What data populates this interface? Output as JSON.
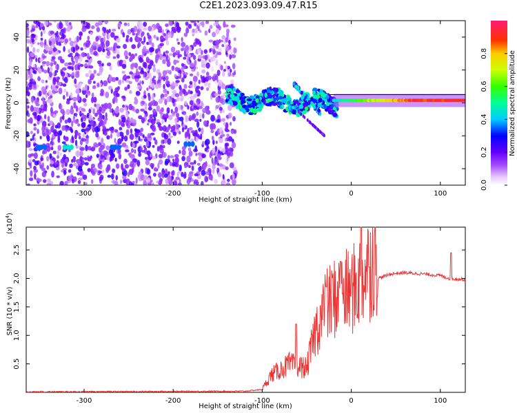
{
  "title": "C2E1.2023.093.09.47.R15",
  "colors": {
    "snr_line": "#ee3333",
    "background": "#ffffff",
    "axis": "#000000"
  },
  "chart_data": [
    {
      "type": "heatmap",
      "xlabel": "Height of straight line (km)",
      "ylabel": "Frequency (Hz)",
      "xlim": [
        -365,
        128
      ],
      "ylim": [
        -50,
        50
      ],
      "xticks": [
        -300,
        -200,
        -100,
        0,
        100
      ],
      "yticks": [
        -40,
        -20,
        0,
        20,
        40
      ],
      "colorbar": {
        "label": "Normalized spectral amplitude",
        "ticks": [
          0.0,
          0.2,
          0.4,
          0.6,
          0.8
        ],
        "range": [
          0,
          1
        ],
        "colormap": "rainbow (white-violet-blue-cyan-green-yellow-red-pink)"
      },
      "features": {
        "noise_region_x": [
          -365,
          -130
        ],
        "main_line_frequency": 1.5,
        "main_line_x": [
          -140,
          128
        ],
        "hot_spots": [
          {
            "x": -348,
            "y": -27,
            "amp": 0.35
          },
          {
            "x": -318,
            "y": -27,
            "amp": 0.45
          },
          {
            "x": -265,
            "y": -27,
            "amp": 0.35
          },
          {
            "x": -182,
            "y": -25,
            "amp": 0.35
          }
        ]
      }
    },
    {
      "type": "line",
      "xlabel": "Height of straight line (km)",
      "ylabel": "SNR (10 * v/v)",
      "yscale_label": "(x10",
      "yscale_exponent": "4",
      "xlim": [
        -365,
        128
      ],
      "ylim": [
        0,
        2.9
      ],
      "xticks": [
        -300,
        -200,
        -100,
        0,
        100
      ],
      "yticks": [
        0.5,
        1.0,
        1.5,
        2.0,
        2.5
      ],
      "series": [
        {
          "envelope_points": [
            {
              "x": -365,
              "y": 0.01
            },
            {
              "x": -120,
              "y": 0.02
            },
            {
              "x": -100,
              "y": 0.05
            },
            {
              "x": -90,
              "y": 0.25
            },
            {
              "x": -70,
              "y": 0.4
            },
            {
              "x": -50,
              "y": 0.35
            },
            {
              "x": -40,
              "y": 0.9
            },
            {
              "x": -30,
              "y": 1.2
            },
            {
              "x": -20,
              "y": 1.35
            },
            {
              "x": -10,
              "y": 1.4
            },
            {
              "x": 0,
              "y": 1.45
            },
            {
              "x": 10,
              "y": 1.6
            },
            {
              "x": 20,
              "y": 1.8
            },
            {
              "x": 30,
              "y": 2.0
            },
            {
              "x": 45,
              "y": 2.08
            },
            {
              "x": 60,
              "y": 2.1
            },
            {
              "x": 80,
              "y": 2.08
            },
            {
              "x": 100,
              "y": 2.05
            },
            {
              "x": 110,
              "y": 2.0
            },
            {
              "x": 128,
              "y": 1.98
            }
          ],
          "peaks": [
            {
              "x": -62,
              "y": 1.2
            },
            {
              "x": -28,
              "y": 1.85
            },
            {
              "x": -12,
              "y": 2.3
            },
            {
              "x": 11,
              "y": 2.9
            },
            {
              "x": 20,
              "y": 2.2
            },
            {
              "x": 112,
              "y": 2.45
            }
          ]
        }
      ]
    }
  ]
}
